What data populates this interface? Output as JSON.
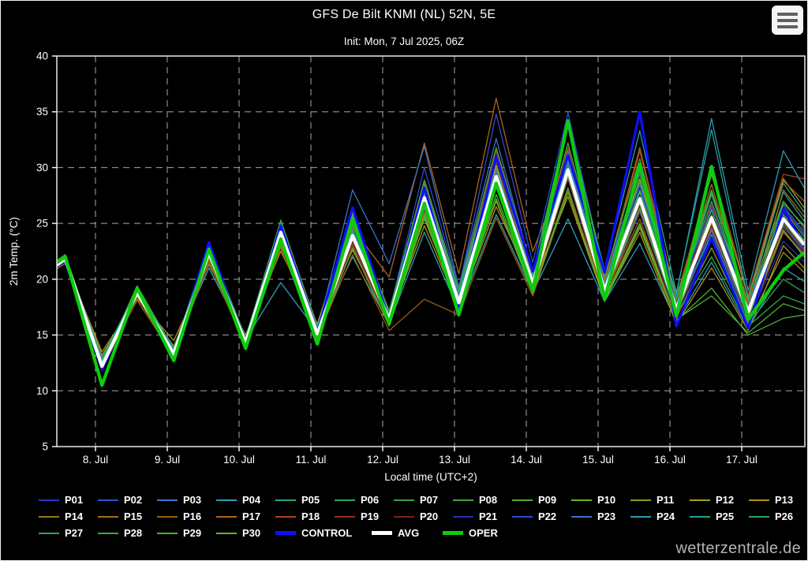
{
  "header": {
    "title": "GFS De Bilt KNMI (NL) 52N, 5E",
    "subtitle": "Init: Mon, 7 Jul 2025, 06Z"
  },
  "menu_icon": "hamburger-menu",
  "watermark": "wetterzentrale.de",
  "colors": {
    "background": "#000000",
    "plot_border": "#d9d9d9",
    "gridline": "#a8a8a8",
    "text": "#ffffff",
    "control": "#0f0fff",
    "avg": "#ffffff",
    "oper": "#0ecc0e",
    "watermark": "#b3b3b3",
    "menu_button_bg": "#f4f4f4",
    "menu_button_bars": "#606060"
  },
  "axes": {
    "y_label": "2m Temp. (°C)",
    "x_label": "Local time (UTC+2)",
    "y_ticks": [
      40,
      35,
      30,
      25,
      20,
      15,
      10,
      5
    ],
    "y_gridlines": [
      35,
      30,
      25,
      20,
      15,
      10
    ],
    "x_ticks": [
      {
        "label": "8. Jul",
        "t": 1
      },
      {
        "label": "9. Jul",
        "t": 2
      },
      {
        "label": "10. Jul",
        "t": 3
      },
      {
        "label": "11. Jul",
        "t": 4
      },
      {
        "label": "12. Jul",
        "t": 5
      },
      {
        "label": "13. Jul",
        "t": 6
      },
      {
        "label": "14. Jul",
        "t": 7
      },
      {
        "label": "15. Jul",
        "t": 8
      },
      {
        "label": "16. Jul",
        "t": 9
      },
      {
        "label": "17. Jul",
        "t": 10
      }
    ]
  },
  "chart_data": {
    "type": "line",
    "title": "GFS De Bilt KNMI (NL) 52N, 5E",
    "subtitle": "Init: Mon, 7 Jul 2025, 06Z",
    "xlabel": "Local time (UTC+2)",
    "ylabel": "2m Temp. (°C)",
    "ylim": [
      5,
      40
    ],
    "grid": "dashed",
    "legend_position": "bottom",
    "x_unit": "days since 7 Jul 2025 00:00 local (UTC+2)",
    "x": [
      0.35,
      0.58,
      1.09,
      1.58,
      2.09,
      2.58,
      3.09,
      3.58,
      4.09,
      4.58,
      5.09,
      5.58,
      6.06,
      6.58,
      7.09,
      7.58,
      8.09,
      8.58,
      9.09,
      9.58,
      10.09,
      10.58,
      10.87
    ],
    "series": [
      {
        "name": "P01",
        "color": "#2936c8",
        "width": 1.3,
        "values": [
          20.5,
          21.5,
          12.1,
          18.5,
          13.1,
          21.9,
          14.0,
          23.7,
          14.8,
          23.3,
          16.1,
          26.2,
          17.6,
          28.3,
          19.2,
          29.0,
          18.4,
          26.0,
          16.8,
          24.0,
          16.5,
          24.3,
          22.3
        ]
      },
      {
        "name": "P02",
        "color": "#2f55d4",
        "width": 1.3,
        "values": [
          20.9,
          21.9,
          12.6,
          19.1,
          13.6,
          22.8,
          14.6,
          24.7,
          15.5,
          24.5,
          17.0,
          27.8,
          18.7,
          30.1,
          20.2,
          30.8,
          19.7,
          28.4,
          18.0,
          26.6,
          17.8,
          26.4,
          24.0
        ]
      },
      {
        "name": "P03",
        "color": "#3a78cf",
        "width": 1.3,
        "values": [
          20.7,
          21.7,
          12.3,
          18.7,
          13.2,
          22.2,
          14.1,
          23.9,
          15.0,
          23.5,
          16.2,
          26.5,
          17.8,
          28.8,
          19.4,
          29.3,
          18.6,
          26.5,
          17.0,
          24.6,
          16.7,
          24.8,
          22.6
        ]
      },
      {
        "name": "P04",
        "color": "#2f9fb4",
        "width": 1.3,
        "values": [
          20.6,
          21.4,
          13.0,
          18.3,
          13.9,
          21.0,
          14.6,
          19.7,
          15.3,
          22.0,
          16.0,
          24.2,
          17.2,
          25.8,
          18.8,
          25.4,
          18.0,
          23.2,
          16.2,
          21.5,
          15.6,
          21.0,
          19.8
        ]
      },
      {
        "name": "P05",
        "color": "#27a393",
        "width": 1.3,
        "values": [
          21.0,
          22.0,
          12.7,
          19.0,
          13.5,
          22.6,
          14.5,
          24.4,
          15.4,
          26.0,
          16.8,
          27.5,
          18.4,
          29.6,
          20.0,
          30.4,
          19.4,
          28.0,
          17.8,
          27.6,
          17.5,
          27.8,
          25.2
        ]
      },
      {
        "name": "P06",
        "color": "#2aa45f",
        "width": 1.3,
        "values": [
          21.1,
          22.1,
          12.2,
          19.3,
          13.4,
          23.0,
          14.4,
          25.0,
          15.3,
          24.8,
          16.9,
          28.2,
          18.6,
          30.5,
          20.1,
          31.5,
          19.6,
          28.8,
          18.1,
          27.0,
          17.6,
          26.2,
          23.8
        ]
      },
      {
        "name": "P07",
        "color": "#33a44b",
        "width": 1.3,
        "values": [
          20.9,
          21.8,
          12.0,
          18.9,
          13.2,
          22.5,
          14.2,
          24.5,
          15.1,
          24.2,
          16.6,
          27.4,
          18.2,
          29.5,
          19.7,
          30.0,
          19.1,
          27.4,
          17.4,
          25.8,
          17.0,
          25.4,
          23.2
        ]
      },
      {
        "name": "P08",
        "color": "#40a83e",
        "width": 1.3,
        "values": [
          21.2,
          22.2,
          12.5,
          19.4,
          13.7,
          23.2,
          14.7,
          25.3,
          15.7,
          25.2,
          17.2,
          28.6,
          19.0,
          31.0,
          20.5,
          32.2,
          20.0,
          29.4,
          18.5,
          28.0,
          18.0,
          27.0,
          24.6
        ]
      },
      {
        "name": "P09",
        "color": "#50ae33",
        "width": 1.3,
        "values": [
          20.8,
          21.7,
          11.9,
          18.6,
          13.0,
          22.0,
          13.9,
          23.5,
          14.7,
          23.0,
          15.9,
          25.8,
          17.4,
          27.6,
          18.9,
          28.2,
          18.2,
          24.8,
          16.4,
          18.5,
          15.2,
          17.8,
          17.2
        ]
      },
      {
        "name": "P10",
        "color": "#63b62a",
        "width": 1.3,
        "values": [
          21.0,
          22.0,
          12.3,
          19.0,
          13.3,
          22.7,
          14.3,
          24.6,
          15.2,
          24.4,
          16.7,
          27.7,
          18.4,
          29.9,
          19.9,
          30.9,
          19.3,
          27.8,
          17.7,
          26.2,
          17.3,
          25.8,
          23.5
        ]
      },
      {
        "name": "P11",
        "color": "#8f9c1f",
        "width": 1.3,
        "values": [
          20.7,
          21.6,
          13.2,
          18.4,
          14.0,
          21.6,
          14.9,
          23.0,
          15.8,
          22.6,
          16.4,
          25.4,
          17.7,
          27.0,
          19.0,
          27.8,
          18.3,
          25.0,
          16.6,
          22.8,
          16.0,
          22.4,
          20.6
        ]
      },
      {
        "name": "P12",
        "color": "#a89e1f",
        "width": 1.3,
        "values": [
          20.9,
          21.9,
          12.8,
          19.2,
          13.8,
          22.9,
          14.8,
          24.9,
          15.9,
          25.6,
          17.1,
          28.0,
          18.8,
          30.2,
          20.3,
          31.0,
          19.8,
          29.0,
          18.3,
          29.4,
          18.4,
          29.0,
          26.4
        ]
      },
      {
        "name": "P13",
        "color": "#b8901c",
        "width": 1.3,
        "values": [
          20.6,
          21.5,
          13.5,
          18.2,
          14.5,
          21.3,
          15.0,
          22.5,
          16.0,
          25.9,
          16.3,
          24.8,
          17.5,
          26.5,
          19.5,
          27.4,
          18.1,
          24.2,
          16.0,
          21.0,
          15.4,
          23.0,
          21.0
        ]
      },
      {
        "name": "P14",
        "color": "#937d1a",
        "width": 1.3,
        "values": [
          20.8,
          21.8,
          12.9,
          18.8,
          13.6,
          22.3,
          14.4,
          24.0,
          15.2,
          23.6,
          16.5,
          26.8,
          18.0,
          29.0,
          19.4,
          29.6,
          18.8,
          26.8,
          17.1,
          25.0,
          16.8,
          25.0,
          22.8
        ]
      },
      {
        "name": "P15",
        "color": "#a1701a",
        "width": 1.3,
        "values": [
          20.7,
          21.6,
          12.6,
          18.5,
          13.4,
          22.1,
          14.2,
          23.8,
          15.0,
          23.2,
          16.2,
          26.0,
          17.7,
          28.4,
          19.1,
          29.1,
          18.5,
          26.2,
          16.9,
          24.4,
          16.4,
          28.0,
          25.6
        ]
      },
      {
        "name": "P16",
        "color": "#9a5c13",
        "width": 1.3,
        "values": [
          20.5,
          21.4,
          12.2,
          18.1,
          13.1,
          21.5,
          14.0,
          22.8,
          14.8,
          22.2,
          15.4,
          18.2,
          16.8,
          25.5,
          18.5,
          28.0,
          18.6,
          25.4,
          16.5,
          23.5,
          16.2,
          24.2,
          22.2
        ]
      },
      {
        "name": "P17",
        "color": "#b0621c",
        "width": 1.3,
        "values": [
          20.9,
          21.9,
          12.4,
          19.0,
          13.5,
          22.6,
          14.5,
          24.4,
          15.5,
          24.6,
          20.2,
          32.2,
          20.5,
          36.2,
          22.5,
          30.5,
          19.9,
          31.8,
          18.2,
          28.5,
          17.7,
          28.8,
          27.0
        ]
      },
      {
        "name": "P18",
        "color": "#a94520",
        "width": 1.3,
        "values": [
          20.8,
          21.7,
          12.1,
          18.7,
          13.3,
          22.4,
          14.3,
          24.1,
          15.1,
          23.8,
          16.6,
          28.8,
          18.6,
          31.5,
          20.8,
          31.8,
          19.5,
          31.5,
          17.9,
          30.0,
          18.6,
          29.4,
          29.0
        ]
      },
      {
        "name": "P19",
        "color": "#97301c",
        "width": 1.3,
        "values": [
          20.6,
          21.5,
          11.8,
          18.4,
          13.0,
          21.8,
          13.9,
          23.4,
          14.7,
          23.0,
          16.0,
          26.4,
          17.6,
          29.8,
          19.3,
          30.2,
          18.7,
          27.0,
          17.0,
          26.8,
          16.6,
          26.0,
          24.4
        ]
      },
      {
        "name": "P20",
        "color": "#802415",
        "width": 1.3,
        "values": [
          20.7,
          21.6,
          12.0,
          18.6,
          13.1,
          22.0,
          14.0,
          23.6,
          14.9,
          23.3,
          16.1,
          26.6,
          17.8,
          30.6,
          19.6,
          30.0,
          18.9,
          26.6,
          17.2,
          24.8,
          16.9,
          24.6,
          22.4
        ]
      },
      {
        "name": "P21",
        "color": "#2430b4",
        "width": 1.3,
        "values": [
          20.8,
          21.8,
          12.5,
          18.9,
          13.4,
          22.5,
          14.4,
          24.3,
          15.3,
          24.0,
          16.7,
          27.2,
          18.3,
          29.4,
          19.8,
          30.5,
          19.2,
          27.6,
          17.5,
          24.2,
          16.3,
          23.4,
          21.6
        ]
      },
      {
        "name": "P22",
        "color": "#2b4ad2",
        "width": 1.3,
        "values": [
          21.0,
          21.9,
          12.7,
          19.2,
          13.7,
          23.0,
          14.7,
          25.1,
          15.6,
          25.4,
          17.0,
          30.0,
          19.2,
          34.8,
          21.5,
          34.9,
          20.3,
          29.6,
          18.4,
          26.4,
          17.4,
          26.6,
          24.2
        ]
      },
      {
        "name": "P23",
        "color": "#3b73c4",
        "width": 1.3,
        "values": [
          20.9,
          21.8,
          12.4,
          18.9,
          13.5,
          22.7,
          14.5,
          24.5,
          15.4,
          28.0,
          21.4,
          31.9,
          19.3,
          32.6,
          20.6,
          31.2,
          19.6,
          28.6,
          17.8,
          25.4,
          17.0,
          25.6,
          23.4
        ]
      },
      {
        "name": "P24",
        "color": "#2d9cb0",
        "width": 1.3,
        "values": [
          20.8,
          21.7,
          12.8,
          18.8,
          13.6,
          22.4,
          14.6,
          24.2,
          15.5,
          24.4,
          16.9,
          27.6,
          18.5,
          29.8,
          20.0,
          30.6,
          19.5,
          29.8,
          18.6,
          34.4,
          19.0,
          31.5,
          28.2
        ]
      },
      {
        "name": "P25",
        "color": "#22a292",
        "width": 1.3,
        "values": [
          21.0,
          22.0,
          12.9,
          19.1,
          13.8,
          22.8,
          14.8,
          24.8,
          15.8,
          25.0,
          17.1,
          28.4,
          18.8,
          30.8,
          20.4,
          33.8,
          20.8,
          33.3,
          18.8,
          33.4,
          18.2,
          28.6,
          26.0
        ]
      },
      {
        "name": "P26",
        "color": "#2ca464",
        "width": 1.3,
        "values": [
          20.9,
          21.9,
          12.2,
          19.0,
          13.3,
          22.6,
          14.3,
          24.4,
          15.2,
          24.1,
          16.6,
          27.3,
          18.2,
          29.3,
          19.6,
          30.2,
          19.0,
          27.2,
          17.3,
          24.0,
          16.0,
          20.0,
          18.8
        ]
      },
      {
        "name": "P27",
        "color": "#35a450",
        "width": 1.3,
        "values": [
          20.8,
          21.8,
          12.1,
          18.8,
          13.2,
          22.3,
          14.2,
          24.0,
          15.0,
          23.7,
          16.4,
          26.9,
          18.0,
          28.9,
          19.4,
          29.4,
          18.7,
          26.4,
          16.9,
          22.0,
          15.8,
          18.5,
          17.8
        ]
      },
      {
        "name": "P28",
        "color": "#42a93f",
        "width": 1.3,
        "values": [
          21.1,
          22.1,
          12.4,
          19.2,
          13.5,
          23.1,
          14.5,
          25.2,
          15.5,
          25.8,
          17.0,
          28.9,
          19.0,
          31.8,
          20.6,
          34.3,
          20.2,
          30.8,
          18.2,
          27.8,
          17.2,
          26.8,
          24.8
        ]
      },
      {
        "name": "P29",
        "color": "#53af34",
        "width": 1.3,
        "values": [
          20.7,
          21.6,
          11.9,
          18.5,
          13.0,
          21.9,
          13.9,
          23.3,
          14.7,
          22.8,
          15.8,
          25.6,
          17.3,
          27.2,
          18.7,
          27.8,
          18.0,
          24.6,
          16.3,
          19.2,
          15.0,
          16.5,
          16.8
        ]
      },
      {
        "name": "P30",
        "color": "#66b72b",
        "width": 1.3,
        "values": [
          20.9,
          21.8,
          12.6,
          18.9,
          13.4,
          22.5,
          14.4,
          24.3,
          15.2,
          24.0,
          16.6,
          27.1,
          18.1,
          29.1,
          19.5,
          29.8,
          18.9,
          27.0,
          17.2,
          25.2,
          16.6,
          24.4,
          22.0
        ]
      },
      {
        "name": "CONTROL",
        "color": "#0f0fff",
        "width": 3.2,
        "values": [
          20.8,
          21.6,
          11.9,
          19.0,
          13.0,
          23.3,
          14.0,
          24.8,
          15.2,
          26.4,
          16.3,
          28.2,
          17.3,
          31.0,
          20.7,
          31.1,
          20.6,
          35.0,
          15.8,
          23.7,
          15.6,
          26.3,
          22.9
        ]
      },
      {
        "name": "AVG",
        "color": "#ffffff",
        "width": 4.2,
        "values": [
          20.8,
          21.8,
          12.2,
          18.8,
          13.3,
          22.4,
          14.3,
          24.2,
          15.1,
          23.9,
          16.4,
          27.3,
          17.9,
          29.2,
          19.6,
          29.8,
          19.0,
          27.2,
          17.3,
          25.5,
          17.1,
          25.4,
          23.1
        ]
      },
      {
        "name": "OPER",
        "color": "#0ecc0e",
        "width": 4.2,
        "values": [
          21.0,
          22.0,
          10.5,
          19.2,
          12.7,
          22.7,
          13.8,
          23.6,
          14.2,
          25.4,
          16.0,
          26.8,
          16.8,
          28.6,
          19.0,
          34.2,
          18.2,
          30.3,
          16.7,
          30.1,
          16.4,
          20.8,
          22.4
        ]
      }
    ]
  }
}
